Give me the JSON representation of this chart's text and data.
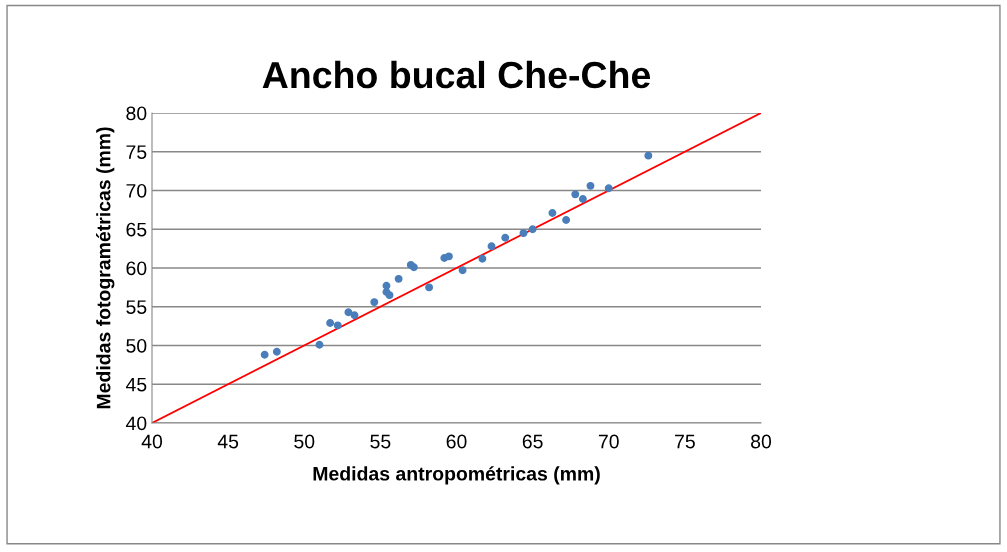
{
  "chart_data": {
    "type": "scatter",
    "title": "Ancho bucal Che-Che",
    "xlabel": "Medidas antropométricas (mm)",
    "ylabel": "Medidas fotogramétricas (mm)",
    "series": [
      {
        "marker": "circle",
        "color": "#4a7ebb",
        "x": [
          47.4,
          48.2,
          51.0,
          51.7,
          52.2,
          52.9,
          53.3,
          54.6,
          55.4,
          55.4,
          55.6,
          56.2,
          57.0,
          57.2,
          58.2,
          59.2,
          59.5,
          60.4,
          61.7,
          62.3,
          63.2,
          64.4,
          65.0,
          66.3,
          67.2,
          67.8,
          68.3,
          68.8,
          70.0,
          72.6
        ],
        "values": [
          48.8,
          49.2,
          50.1,
          52.9,
          52.6,
          54.3,
          53.9,
          55.6,
          57.7,
          56.9,
          56.5,
          58.6,
          60.4,
          60.1,
          57.5,
          61.3,
          61.5,
          59.7,
          61.2,
          62.8,
          63.9,
          64.5,
          65.0,
          67.1,
          66.2,
          69.5,
          68.9,
          70.6,
          70.3,
          74.5
        ]
      },
      {
        "type": "line",
        "marker": "none",
        "color": "#ff0000",
        "x": [
          40,
          80
        ],
        "values": [
          40,
          80
        ]
      }
    ],
    "xlim": [
      40,
      80
    ],
    "ylim": [
      40,
      80
    ],
    "xticks": [
      40,
      45,
      50,
      55,
      60,
      65,
      70,
      75,
      80
    ],
    "yticks": [
      40,
      45,
      50,
      55,
      60,
      65,
      70,
      75,
      80
    ],
    "grid": "y"
  }
}
